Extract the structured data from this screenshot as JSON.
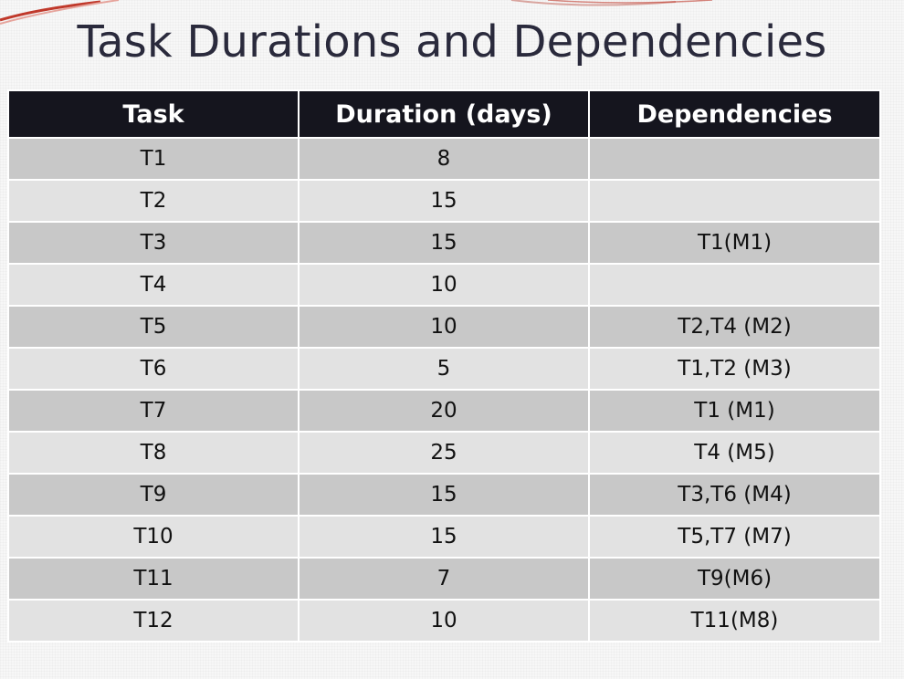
{
  "title": "Task Durations and Dependencies",
  "table": {
    "headers": [
      "Task",
      "Duration (days)",
      "Dependencies"
    ],
    "rows": [
      {
        "task": "T1",
        "duration": "8",
        "dependencies": ""
      },
      {
        "task": "T2",
        "duration": "15",
        "dependencies": ""
      },
      {
        "task": "T3",
        "duration": "15",
        "dependencies": "T1(M1)"
      },
      {
        "task": "T4",
        "duration": "10",
        "dependencies": ""
      },
      {
        "task": "T5",
        "duration": "10",
        "dependencies": "T2,T4 (M2)"
      },
      {
        "task": "T6",
        "duration": "5",
        "dependencies": "T1,T2 (M3)"
      },
      {
        "task": "T7",
        "duration": "20",
        "dependencies": "T1 (M1)"
      },
      {
        "task": "T8",
        "duration": "25",
        "dependencies": "T4 (M5)"
      },
      {
        "task": "T9",
        "duration": "15",
        "dependencies": "T3,T6 (M4)"
      },
      {
        "task": "T10",
        "duration": "15",
        "dependencies": "T5,T7 (M7)"
      },
      {
        "task": "T11",
        "duration": "7",
        "dependencies": "T9(M6)"
      },
      {
        "task": "T12",
        "duration": "10",
        "dependencies": "T11(M8)"
      }
    ]
  },
  "colors": {
    "header_bg": "#15151e",
    "row_dark": "#c8c8c8",
    "row_light": "#e2e2e2",
    "title_text": "#2a2a3c",
    "accent_swoosh": "#c0392b"
  }
}
